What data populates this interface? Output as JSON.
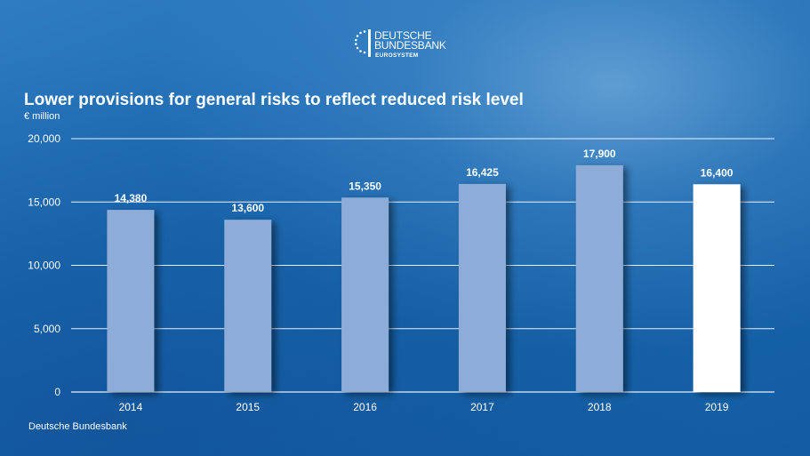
{
  "logo": {
    "line1": "DEUTSCHE",
    "line2": "BUNDESBANK",
    "line3": "EUROSYSTEM"
  },
  "colors": {
    "bar": "#8dadd8",
    "bar_highlight": "#ffffff",
    "grid": "#ffffff"
  },
  "source": "Deutsche Bundesbank",
  "chart_data": {
    "type": "bar",
    "title": "Lower provisions for general risks to reflect reduced risk level",
    "ylabel": "€ million",
    "xlabel": "",
    "categories": [
      "2014",
      "2015",
      "2016",
      "2017",
      "2018",
      "2019"
    ],
    "values": [
      14380,
      13600,
      15350,
      16425,
      17900,
      16400
    ],
    "value_labels": [
      "14,380",
      "13,600",
      "15,350",
      "16,425",
      "17,900",
      "16,400"
    ],
    "highlight_index": 5,
    "ylim": [
      0,
      20000
    ],
    "yticks": [
      0,
      5000,
      10000,
      15000,
      20000
    ],
    "ytick_labels": [
      "0",
      "5,000",
      "10,000",
      "15,000",
      "20,000"
    ],
    "grid": true,
    "legend": "none"
  }
}
